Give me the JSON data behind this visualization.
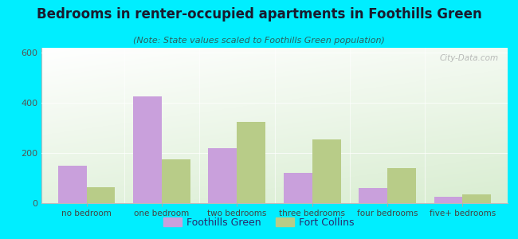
{
  "title": "Bedrooms in renter-occupied apartments in Foothills Green",
  "subtitle": "(Note: State values scaled to Foothills Green population)",
  "categories": [
    "no bedroom",
    "one bedroom",
    "two bedrooms",
    "three bedrooms",
    "four bedrooms",
    "five+ bedrooms"
  ],
  "foothills_values": [
    150,
    425,
    220,
    120,
    60,
    25
  ],
  "fortcollins_values": [
    65,
    175,
    325,
    255,
    140,
    35
  ],
  "foothills_color": "#c9a0dc",
  "fortcollins_color": "#b8cc88",
  "background_outer": "#00eeff",
  "ylim": [
    0,
    620
  ],
  "yticks": [
    0,
    200,
    400,
    600
  ],
  "bar_width": 0.38,
  "legend_labels": [
    "Foothills Green",
    "Fort Collins"
  ],
  "watermark": "ⓘ  City-Data.com",
  "title_fontsize": 12,
  "subtitle_fontsize": 8
}
